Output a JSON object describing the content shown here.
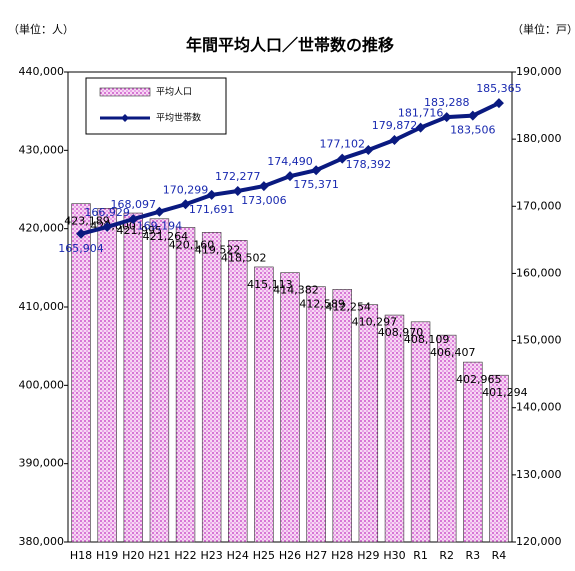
{
  "chart_data": {
    "type": "bar-line",
    "title": "年間平均人口／世帯数の推移",
    "y_unit_label": "（単位：人）",
    "y2_unit_label": "（単位：戸）",
    "categories": [
      "H18",
      "H19",
      "H20",
      "H21",
      "H22",
      "H23",
      "H24",
      "H25",
      "H26",
      "H27",
      "H28",
      "H29",
      "H30",
      "R1",
      "R2",
      "R3",
      "R4"
    ],
    "series": [
      {
        "name": "平均人口",
        "color": "#e070d8",
        "axis": "y",
        "values": [
          423189,
          422600,
          421995,
          421264,
          420160,
          419522,
          418502,
          415113,
          414382,
          412589,
          412254,
          410297,
          408970,
          408109,
          406407,
          402965,
          401294
        ],
        "value_labels": [
          "423,189",
          "422,600",
          "421,995",
          "421,264",
          "420,160",
          "419,522",
          "418,502",
          "415,113",
          "414,382",
          "412,589",
          "412,254",
          "410,297",
          "408,970",
          "408,109",
          "406,407",
          "402,965",
          "401,294"
        ]
      },
      {
        "name": "平均世帯数",
        "color": "#0a1a80",
        "axis": "y2",
        "values": [
          165904,
          166929,
          168097,
          169194,
          170299,
          171691,
          172277,
          173006,
          174490,
          175371,
          177102,
          178392,
          179872,
          181716,
          183288,
          183506,
          185365
        ],
        "value_labels": [
          "165,904",
          "166,929",
          "168,097",
          "169,194",
          "170,299",
          "171,691",
          "172,277",
          "173,006",
          "174,490",
          "175,371",
          "177,102",
          "178,392",
          "179,872",
          "181,716",
          "183,288",
          "183,506",
          "185,365"
        ]
      }
    ],
    "ylim": [
      380000,
      440000
    ],
    "yticks": [
      {
        "value": 380000,
        "label": "380,000"
      },
      {
        "value": 390000,
        "label": "390,000"
      },
      {
        "value": 400000,
        "label": "400,000"
      },
      {
        "value": 410000,
        "label": "410,000"
      },
      {
        "value": 420000,
        "label": "420,000"
      },
      {
        "value": 430000,
        "label": "430,000"
      },
      {
        "value": 440000,
        "label": "440,000"
      }
    ],
    "y2lim": [
      120000,
      190000
    ],
    "y2ticks": [
      {
        "value": 120000,
        "label": "120,000"
      },
      {
        "value": 130000,
        "label": "130,000"
      },
      {
        "value": 140000,
        "label": "140,000"
      },
      {
        "value": 150000,
        "label": "150,000"
      },
      {
        "value": 160000,
        "label": "160,000"
      },
      {
        "value": 170000,
        "label": "170,000"
      },
      {
        "value": 180000,
        "label": "180,000"
      },
      {
        "value": 190000,
        "label": "190,000"
      }
    ],
    "grid": false,
    "legend": "upper-left"
  }
}
